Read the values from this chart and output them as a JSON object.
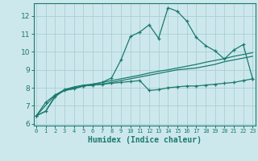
{
  "bg_color": "#cde8ec",
  "grid_color": "#aacfd4",
  "line_color": "#1a7a6e",
  "xlabel": "Humidex (Indice chaleur)",
  "ylabel_ticks": [
    6,
    7,
    8,
    9,
    10,
    11,
    12
  ],
  "xlabel_ticks": [
    0,
    1,
    2,
    3,
    4,
    5,
    6,
    7,
    8,
    9,
    10,
    11,
    12,
    13,
    14,
    15,
    16,
    17,
    18,
    19,
    20,
    21,
    22,
    23
  ],
  "xlim": [
    -0.3,
    23.3
  ],
  "ylim": [
    5.9,
    12.7
  ],
  "line1_x": [
    0,
    1,
    2,
    3,
    4,
    5,
    6,
    7,
    8,
    9,
    10,
    11,
    12,
    13,
    14,
    15,
    16,
    17,
    18,
    19,
    20,
    21,
    22,
    23
  ],
  "line1_y": [
    6.45,
    7.2,
    7.6,
    7.85,
    7.95,
    8.1,
    8.2,
    8.3,
    8.55,
    9.55,
    10.85,
    11.1,
    11.5,
    10.75,
    12.45,
    12.25,
    11.7,
    10.8,
    10.35,
    10.05,
    9.6,
    10.1,
    10.4,
    8.5
  ],
  "line2_x": [
    0,
    1,
    2,
    3,
    4,
    5,
    6,
    7,
    8,
    9,
    10,
    11,
    12,
    13,
    14,
    15,
    16,
    17,
    18,
    19,
    20,
    21,
    22,
    23
  ],
  "line2_y": [
    6.45,
    6.7,
    7.5,
    7.9,
    8.0,
    8.1,
    8.15,
    8.2,
    8.25,
    8.3,
    8.35,
    8.4,
    7.85,
    7.9,
    8.0,
    8.05,
    8.1,
    8.1,
    8.15,
    8.2,
    8.25,
    8.3,
    8.4,
    8.5
  ],
  "line3_x": [
    0,
    1,
    2,
    3,
    4,
    5,
    6,
    7,
    8,
    9,
    10,
    11,
    12,
    13,
    14,
    15,
    16,
    17,
    18,
    19,
    20,
    21,
    22,
    23
  ],
  "line3_y": [
    6.45,
    6.7,
    7.55,
    7.85,
    7.95,
    8.1,
    8.15,
    8.2,
    8.3,
    8.4,
    8.5,
    8.6,
    8.7,
    8.8,
    8.9,
    9.0,
    9.05,
    9.1,
    9.2,
    9.3,
    9.45,
    9.55,
    9.65,
    9.75
  ],
  "line4_x": [
    0,
    2,
    3,
    4,
    5,
    6,
    7,
    8,
    9,
    10,
    11,
    12,
    13,
    14,
    15,
    16,
    17,
    18,
    19,
    20,
    21,
    22,
    23
  ],
  "line4_y": [
    6.45,
    7.6,
    7.9,
    8.05,
    8.15,
    8.2,
    8.3,
    8.4,
    8.5,
    8.6,
    8.7,
    8.82,
    8.92,
    9.0,
    9.1,
    9.2,
    9.3,
    9.42,
    9.52,
    9.62,
    9.75,
    9.85,
    9.95
  ]
}
